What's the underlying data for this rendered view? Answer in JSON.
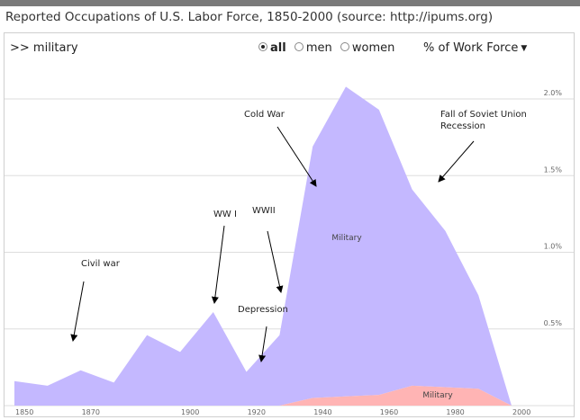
{
  "page_title": "Reported Occupations of U.S. Labor Force, 1850-2000 (source: http://ipums.org)",
  "controls": {
    "query": ">> military",
    "filters": [
      {
        "label": "all",
        "selected": true
      },
      {
        "label": "men",
        "selected": false
      },
      {
        "label": "women",
        "selected": false
      }
    ],
    "measure": "% of Work Force",
    "measure_icon": "caret-down-icon"
  },
  "colors": {
    "men_area": "#c4b8ff",
    "women_area": "#ffb4b4",
    "grid": "#dddddd",
    "arrow": "#000000",
    "topbar": "#7a7a7a"
  },
  "chart_data": {
    "type": "area",
    "stacked": true,
    "title": "",
    "xlabel": "",
    "ylabel": "",
    "x": [
      1850,
      1860,
      1870,
      1880,
      1890,
      1900,
      1910,
      1920,
      1930,
      1940,
      1950,
      1960,
      1970,
      1980,
      1990,
      2000
    ],
    "xlim": [
      1850,
      2000
    ],
    "ylim": [
      0,
      2.1
    ],
    "x_ticks": [
      "1850",
      "1870",
      "1900",
      "1920",
      "1940",
      "1960",
      "1980",
      "2000"
    ],
    "y_ticks": [
      "0.5%",
      "1.0%",
      "1.5%",
      "2.0%"
    ],
    "grid": "horizontal",
    "series": [
      {
        "name": "Military",
        "values": [
          0.16,
          0.13,
          0.23,
          0.15,
          0.46,
          0.35,
          0.61,
          0.22,
          0.46,
          1.64,
          2.02,
          1.86,
          1.28,
          1.02,
          0.61,
          0.0
        ]
      },
      {
        "name": "Military",
        "values": [
          0.0,
          0.0,
          0.0,
          0.0,
          0.0,
          0.0,
          0.0,
          0.0,
          0.0,
          0.05,
          0.06,
          0.07,
          0.13,
          0.12,
          0.11,
          0.0
        ]
      }
    ],
    "annotations": [
      {
        "text": "Civil war"
      },
      {
        "text": "WW I"
      },
      {
        "text": "WWII"
      },
      {
        "text": "Depression"
      },
      {
        "text": "Cold War"
      },
      {
        "text": "Fall of Soviet Union"
      },
      {
        "text": "Recession"
      }
    ]
  }
}
